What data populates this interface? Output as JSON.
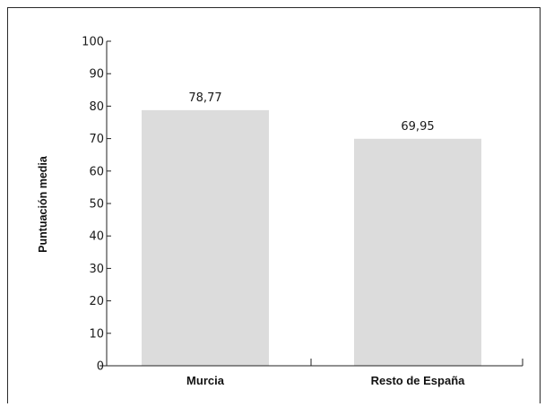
{
  "chart_data": {
    "type": "bar",
    "categories": [
      "Murcia",
      "Resto de España"
    ],
    "values": [
      78.77,
      69.95
    ],
    "value_labels": [
      "78,77",
      "69,95"
    ],
    "title": "",
    "xlabel": "",
    "ylabel": "Puntuación media",
    "ylim": [
      0,
      100
    ],
    "yticks": [
      0,
      10,
      20,
      30,
      40,
      50,
      60,
      70,
      80,
      90,
      100
    ],
    "ytick_labels": [
      "0",
      "10",
      "20",
      "30",
      "40",
      "50",
      "60",
      "70",
      "80",
      "90",
      "100"
    ],
    "grid": false,
    "legend": "none",
    "bar_color": "#dcdcdc",
    "axis_color": "#222222"
  }
}
